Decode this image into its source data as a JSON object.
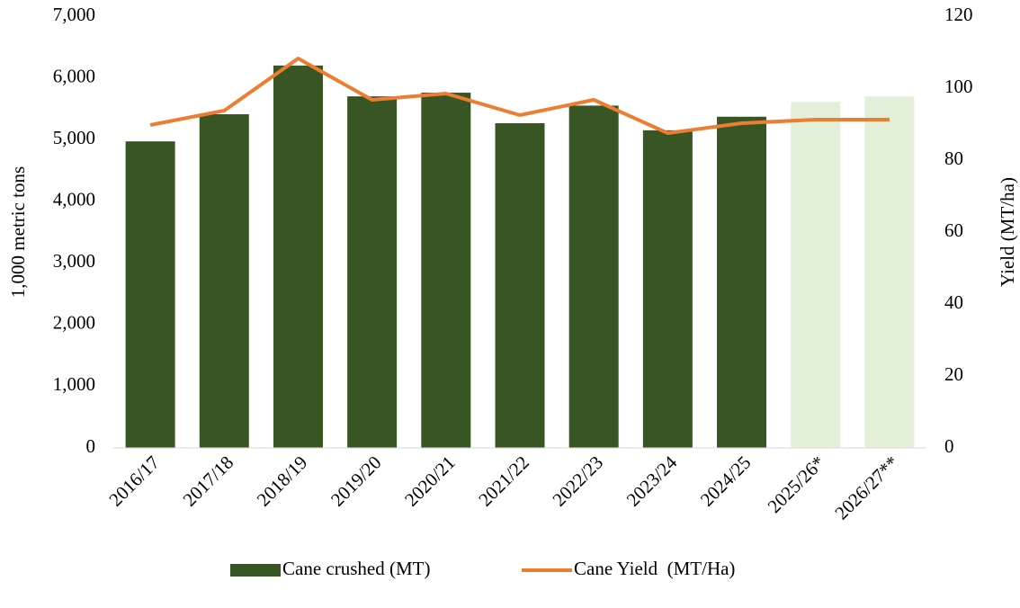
{
  "chart_data": {
    "type": "bar-line",
    "categories": [
      "2016/17",
      "2017/18",
      "2018/19",
      "2019/20",
      "2020/21",
      "2021/22",
      "2022/23",
      "2023/24",
      "2024/25",
      "2025/26*",
      "2026/27**"
    ],
    "ylabel": "1,000 metric tons",
    "y2label": "Yield (MT/ha)",
    "ylim": [
      0,
      7000
    ],
    "yticks": [
      0,
      {
        "value": 1000,
        "label": "1,000"
      },
      {
        "value": 2000,
        "label": "2,000"
      },
      {
        "value": 3000,
        "label": "3,000"
      },
      {
        "value": 4000,
        "label": "4,000"
      },
      {
        "value": 5000,
        "label": "5,000"
      },
      {
        "value": 6000,
        "label": "6,000"
      },
      {
        "value": 7000,
        "label": "7,000"
      }
    ],
    "y2lim": [
      0,
      120
    ],
    "y2ticks": [
      0,
      20,
      40,
      60,
      80,
      100,
      120
    ],
    "legend": "bottom",
    "series": [
      {
        "name": "Cane crushed (MT)",
        "type": "bar",
        "color": "#375623",
        "point_colors": [
          "#375623",
          "#375623",
          "#375623",
          "#375623",
          "#375623",
          "#375623",
          "#375623",
          "#375623",
          "#375623",
          "#e2efd9",
          "#e2efd9"
        ],
        "values": [
          4970,
          5410,
          6200,
          5700,
          5760,
          5265,
          5550,
          5150,
          5370,
          5610,
          5700
        ]
      },
      {
        "name": "Cane Yield  (MT/Ha)",
        "type": "line",
        "axis": "y2",
        "color": "#ed7d31",
        "values": [
          89.75,
          93.75,
          108.25,
          96.75,
          98.5,
          92.5,
          96.75,
          87.5,
          90.25,
          91.25,
          91.25
        ]
      }
    ]
  }
}
